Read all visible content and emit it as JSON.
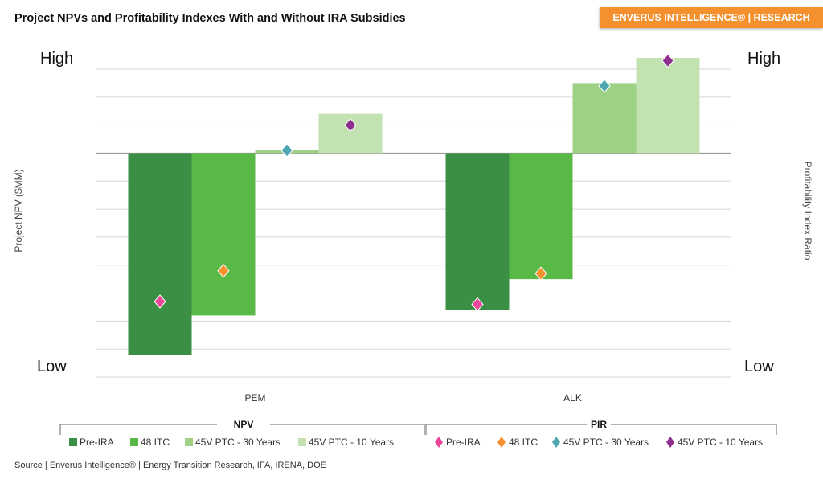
{
  "header": {
    "title": "Project NPVs and Profitability Indexes With and Without IRA Subsidies",
    "badge": "ENVERUS INTELLIGENCE® | RESEARCH"
  },
  "footer": {
    "source": "Source | Enverus Intelligence® | Energy Transition Research, IFA, IRENA, DOE"
  },
  "chart_data": {
    "type": "bar",
    "title": "Project NPVs and Profitability Indexes With and Without IRA Subsidies",
    "categories": [
      "PEM",
      "ALK"
    ],
    "ylabel": "Project NPV ($MM)",
    "y2label": "Profitability Index Ratio",
    "left_axis_labels": {
      "high": "High",
      "low": "Low"
    },
    "right_axis_labels": {
      "high": "High",
      "low": "Low"
    },
    "ylim": [
      -8,
      3
    ],
    "grid": true,
    "legend_placement": "bottom",
    "legend_groups": {
      "npv": "NPV",
      "pir": "PIR"
    },
    "series": [
      {
        "name": "Pre-IRA",
        "group": "NPV",
        "color": "#3a8f45",
        "values": [
          -7.2,
          -5.6
        ]
      },
      {
        "name": "48 ITC",
        "group": "NPV",
        "color": "#58b947",
        "values": [
          -5.8,
          -4.5
        ]
      },
      {
        "name": "45V PTC - 30 Years",
        "group": "NPV",
        "color": "#9dd286",
        "values": [
          0.1,
          2.5
        ]
      },
      {
        "name": "45V PTC - 10 Years",
        "group": "NPV",
        "color": "#c3e2b1",
        "values": [
          1.4,
          3.4
        ]
      }
    ],
    "markers": [
      {
        "name": "Pre-IRA",
        "group": "PIR",
        "color": "#e8479a",
        "values": [
          -5.3,
          -5.4
        ]
      },
      {
        "name": "48 ITC",
        "group": "PIR",
        "color": "#f7902f",
        "values": [
          -4.2,
          -4.3
        ]
      },
      {
        "name": "45V PTC - 30 Years",
        "group": "PIR",
        "color": "#4ea6b1",
        "values": [
          0.1,
          2.4
        ]
      },
      {
        "name": "45V PTC - 10 Years",
        "group": "PIR",
        "color": "#8e2e8e",
        "values": [
          1.0,
          3.3
        ]
      }
    ]
  }
}
